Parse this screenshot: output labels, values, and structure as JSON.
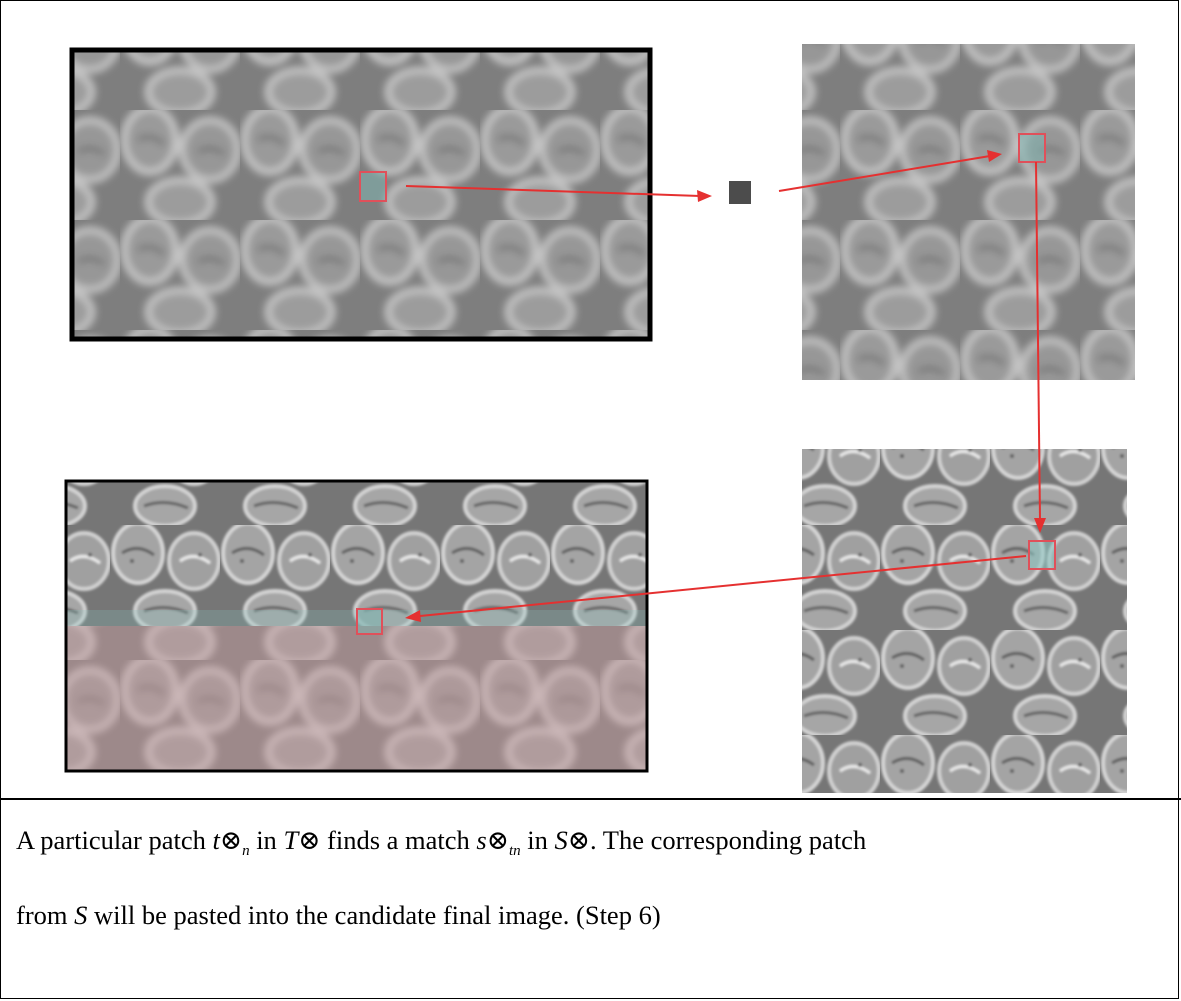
{
  "caption": {
    "p1": "A particular patch ",
    "t": "t",
    "sub_n": "n",
    "p2": " in ",
    "T": "T",
    "p3": " finds a match ",
    "s": "s",
    "sub_tn": "tn",
    "p4": " in ",
    "S": "S",
    "p5": ". The corresponding patch",
    "p6": "from ",
    "S2": "S",
    "p7": " will be pasted into the candidate final image. (Step 6)",
    "otimes": "⊗"
  },
  "colors": {
    "arrow": "#e53030",
    "patch_box": "#e0505a",
    "texture_light": "#b4b4b4",
    "texture_bg": "#868686",
    "pink_overlay": "#d89ea0",
    "teal_overlay": "#88c4c0"
  },
  "panels": {
    "top_left": "blurred target texture T⊗ with highlighted patch",
    "top_right": "blurred source texture S⊗ with matched patch",
    "bottom_right": "sharp source texture S with corresponding patch",
    "bottom_left": "candidate final image being synthesized"
  }
}
